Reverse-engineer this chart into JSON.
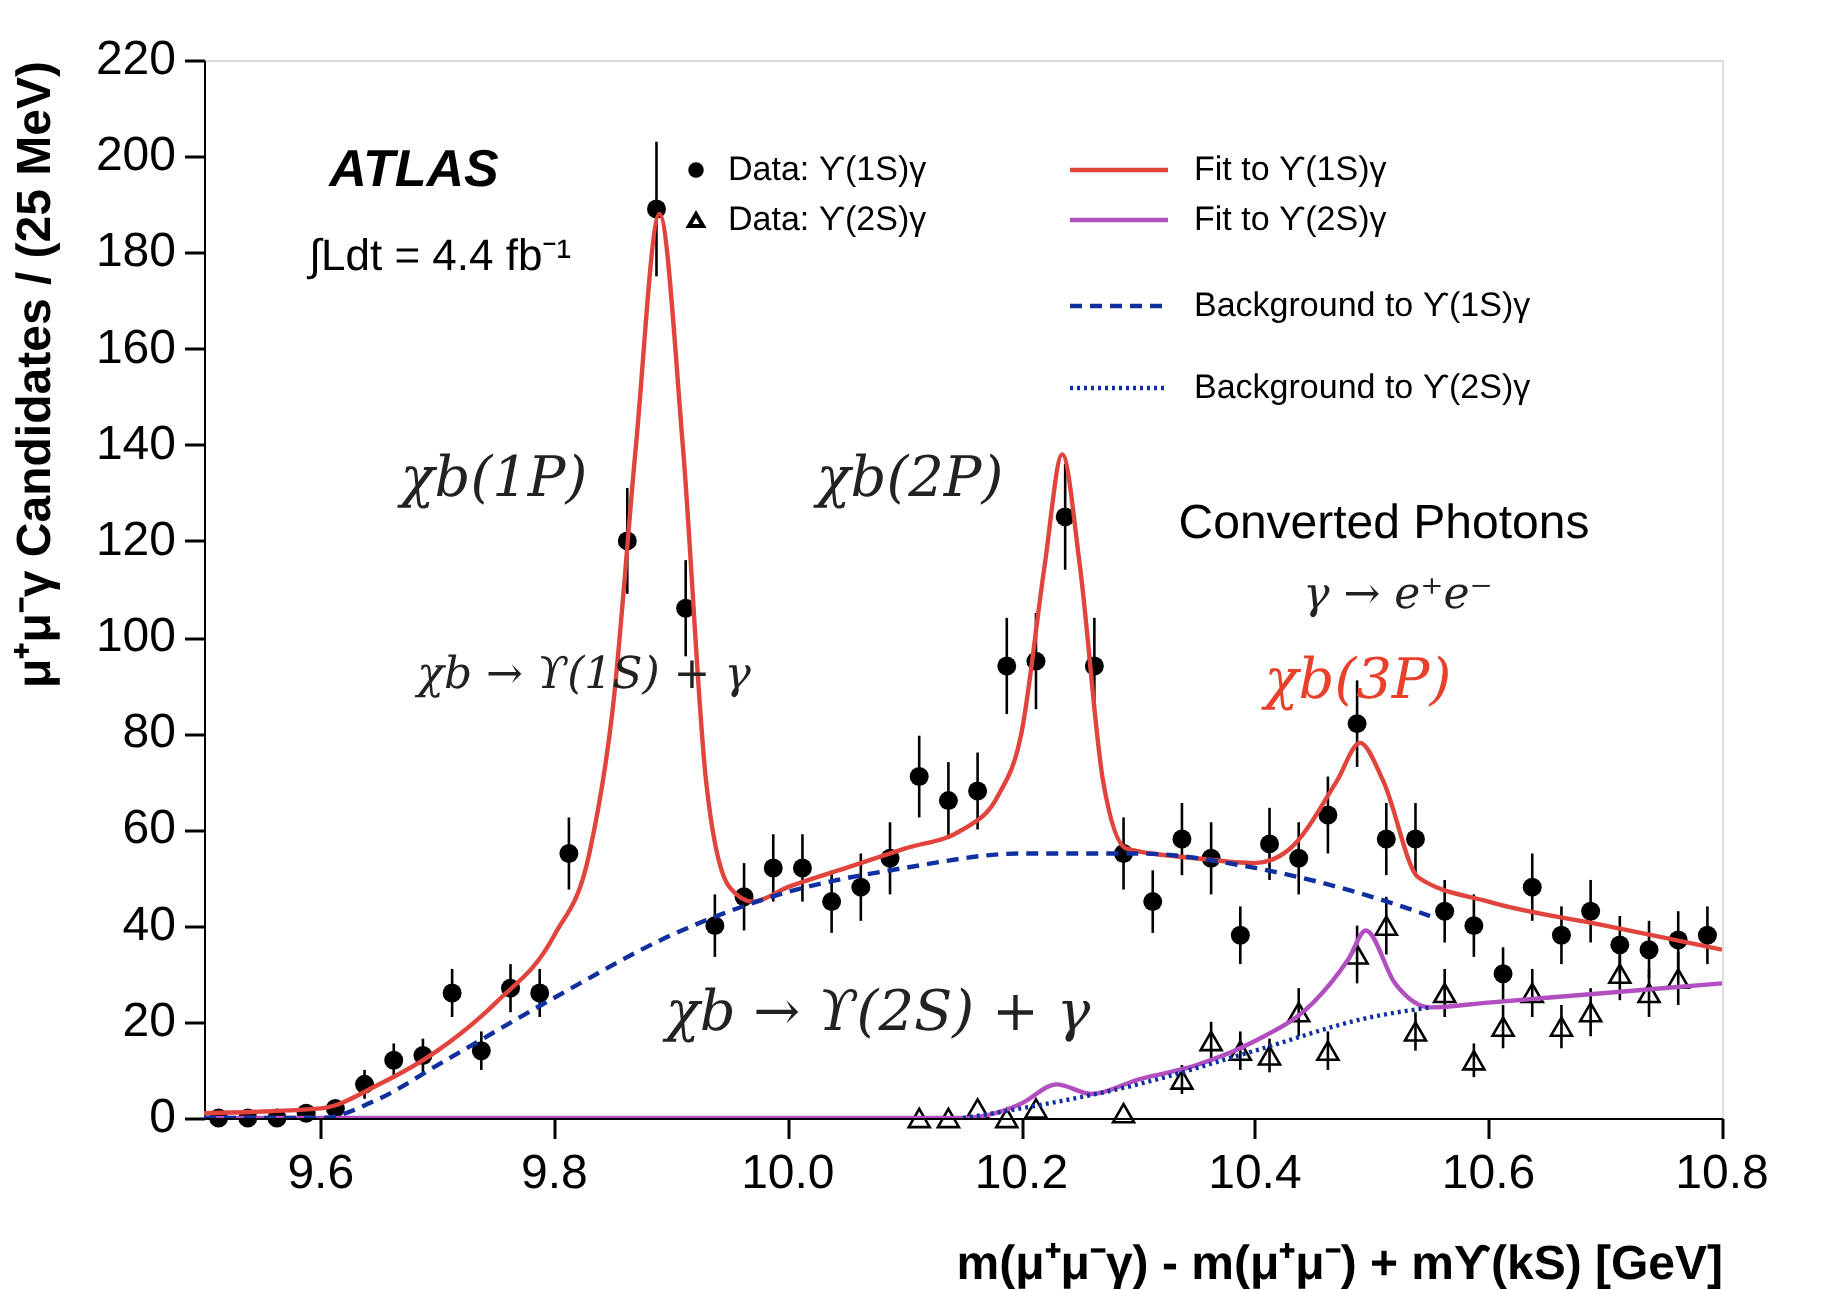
{
  "chart_data": {
    "type": "scatter",
    "xlabel": "m(μ⁺μ⁻γ) - m(μ⁺μ⁻) + mϒ(kS) [GeV]",
    "ylabel": "μ⁺μ⁻γ Candidates / (25 MeV)",
    "xlim": [
      9.5,
      10.8
    ],
    "xticks": [
      9.6,
      9.8,
      {
        "value": 10,
        "label": "10.0"
      },
      10.2,
      10.4,
      10.6,
      10.8
    ],
    "ylim": [
      0,
      220
    ],
    "yticks": [
      0,
      20,
      40,
      60,
      80,
      100,
      120,
      140,
      160,
      180,
      200,
      220
    ],
    "grid": false,
    "legend": "top right",
    "annotations": [
      "ATLAS",
      "∫Ldt = 4.4 fb⁻¹",
      "χb(1P)",
      "χb(2P)",
      "Converted Photons",
      "γ → e⁺e⁻",
      "χb(3P)",
      "χb → ϒ(1S) + γ",
      "χb → ϒ(2S) + γ"
    ],
    "series": [
      {
        "name": "Data: ϒ(1S)γ",
        "type": "scatter",
        "marker": "circle",
        "color": "#000000",
        "x": [
          9.5125,
          9.5375,
          9.5625,
          9.5875,
          9.6125,
          9.6375,
          9.6625,
          9.6875,
          9.7125,
          9.7375,
          9.7625,
          9.7875,
          9.8125,
          9.8625,
          9.8875,
          9.9125,
          9.9375,
          9.9625,
          9.9875,
          10.0125,
          10.0375,
          10.0625,
          10.0875,
          10.1125,
          10.1375,
          10.1625,
          10.1875,
          10.2125,
          10.2375,
          10.2625,
          10.2875,
          10.3125,
          10.3375,
          10.3625,
          10.3875,
          10.4125,
          10.4375,
          10.4625,
          10.4875,
          10.5125,
          10.5375,
          10.5625,
          10.5875,
          10.6125,
          10.6375,
          10.6625,
          10.6875,
          10.7125,
          10.7375,
          10.7625,
          10.7875
        ],
        "values": [
          0,
          0,
          0,
          1,
          2,
          7,
          12,
          13,
          26,
          14,
          27,
          26,
          55,
          120,
          189,
          106,
          40,
          46,
          52,
          52,
          45,
          48,
          54,
          71,
          66,
          68,
          94,
          95,
          125,
          94,
          55,
          45,
          58,
          54,
          38,
          57,
          54,
          63,
          82,
          58,
          58,
          43,
          40,
          30,
          48,
          38,
          43,
          36,
          35,
          37,
          38
        ],
        "errors": [
          null,
          null,
          null,
          1,
          1.5,
          3,
          3.5,
          3.5,
          5,
          4,
          5,
          5,
          7.5,
          11,
          14,
          10,
          6.5,
          7,
          7,
          7,
          6.5,
          7,
          7.5,
          8.5,
          8,
          8,
          10,
          10,
          11,
          10,
          7.5,
          6.5,
          7.5,
          7.5,
          6,
          7.5,
          7.5,
          8,
          9,
          7.5,
          7.5,
          6.5,
          6.5,
          5.5,
          7,
          6,
          6.5,
          6,
          6,
          6,
          6
        ]
      },
      {
        "name": "Data: ϒ(2S)γ",
        "type": "scatter",
        "marker": "triangle",
        "color": "#000000",
        "x": [
          10.1125,
          10.1375,
          10.1625,
          10.1875,
          10.2125,
          10.2875,
          10.3375,
          10.3625,
          10.3875,
          10.4125,
          10.4375,
          10.4625,
          10.4875,
          10.5125,
          10.5375,
          10.5625,
          10.5875,
          10.6125,
          10.6375,
          10.6625,
          10.6875,
          10.7125,
          10.7375,
          10.7625
        ],
        "values": [
          0,
          0,
          2,
          0,
          2,
          1,
          8,
          16,
          14,
          13,
          22,
          14,
          34,
          40,
          18,
          26,
          12,
          19,
          26,
          19,
          22,
          30,
          26,
          29
        ],
        "errors": [
          null,
          null,
          null,
          null,
          null,
          null,
          3,
          4,
          4,
          3.5,
          5,
          4,
          6,
          6,
          4,
          5,
          3.5,
          4.5,
          5,
          4.5,
          5,
          5.5,
          5,
          5.5
        ]
      },
      {
        "name": "Fit to ϒ(1S)γ",
        "type": "line",
        "line_style": "solid",
        "color": "#e0443c",
        "x": [
          9.5,
          9.6,
          9.65,
          9.7,
          9.75,
          9.8,
          9.83,
          9.85,
          9.87,
          9.89,
          9.91,
          9.93,
          9.95,
          9.97,
          10.0,
          10.05,
          10.1,
          10.15,
          10.18,
          10.2,
          10.22,
          10.235,
          10.25,
          10.27,
          10.29,
          10.35,
          10.4,
          10.43,
          10.47,
          10.49,
          10.51,
          10.54,
          10.6,
          10.7,
          10.8
        ],
        "values": [
          1,
          2,
          7,
          14,
          24,
          38,
          55,
          85,
          140,
          188,
          140,
          70,
          48,
          45,
          48,
          52,
          56,
          60,
          67,
          80,
          115,
          138,
          115,
          70,
          56,
          54,
          53,
          56,
          70,
          78,
          70,
          50,
          45,
          40,
          35
        ]
      },
      {
        "name": "Fit to ϒ(2S)γ",
        "type": "line",
        "line_style": "solid",
        "color": "#b24fc0",
        "x": [
          9.5,
          10.15,
          10.2,
          10.23,
          10.26,
          10.3,
          10.35,
          10.4,
          10.45,
          10.48,
          10.495,
          10.52,
          10.55,
          10.6,
          10.7,
          10.8
        ],
        "values": [
          0,
          0,
          3,
          7,
          5,
          8,
          11,
          16,
          24,
          33,
          39,
          28,
          23,
          24,
          26,
          28
        ]
      },
      {
        "name": "Background to ϒ(1S)γ",
        "type": "line",
        "line_style": "dashed",
        "color": "#1030a0",
        "x": [
          9.5,
          9.6,
          9.65,
          9.7,
          9.8,
          9.9,
          10.0,
          10.1,
          10.2,
          10.3,
          10.4,
          10.5,
          10.55
        ],
        "values": [
          0,
          0,
          4,
          11,
          25,
          38,
          47,
          52,
          55,
          55,
          52,
          46,
          42
        ]
      },
      {
        "name": "Background to ϒ(2S)γ",
        "type": "line",
        "line_style": "dotted",
        "color": "#1030a0",
        "x": [
          10.15,
          10.2,
          10.3,
          10.4,
          10.5,
          10.55
        ],
        "values": [
          0,
          2,
          7,
          14,
          21,
          23
        ]
      }
    ]
  }
}
